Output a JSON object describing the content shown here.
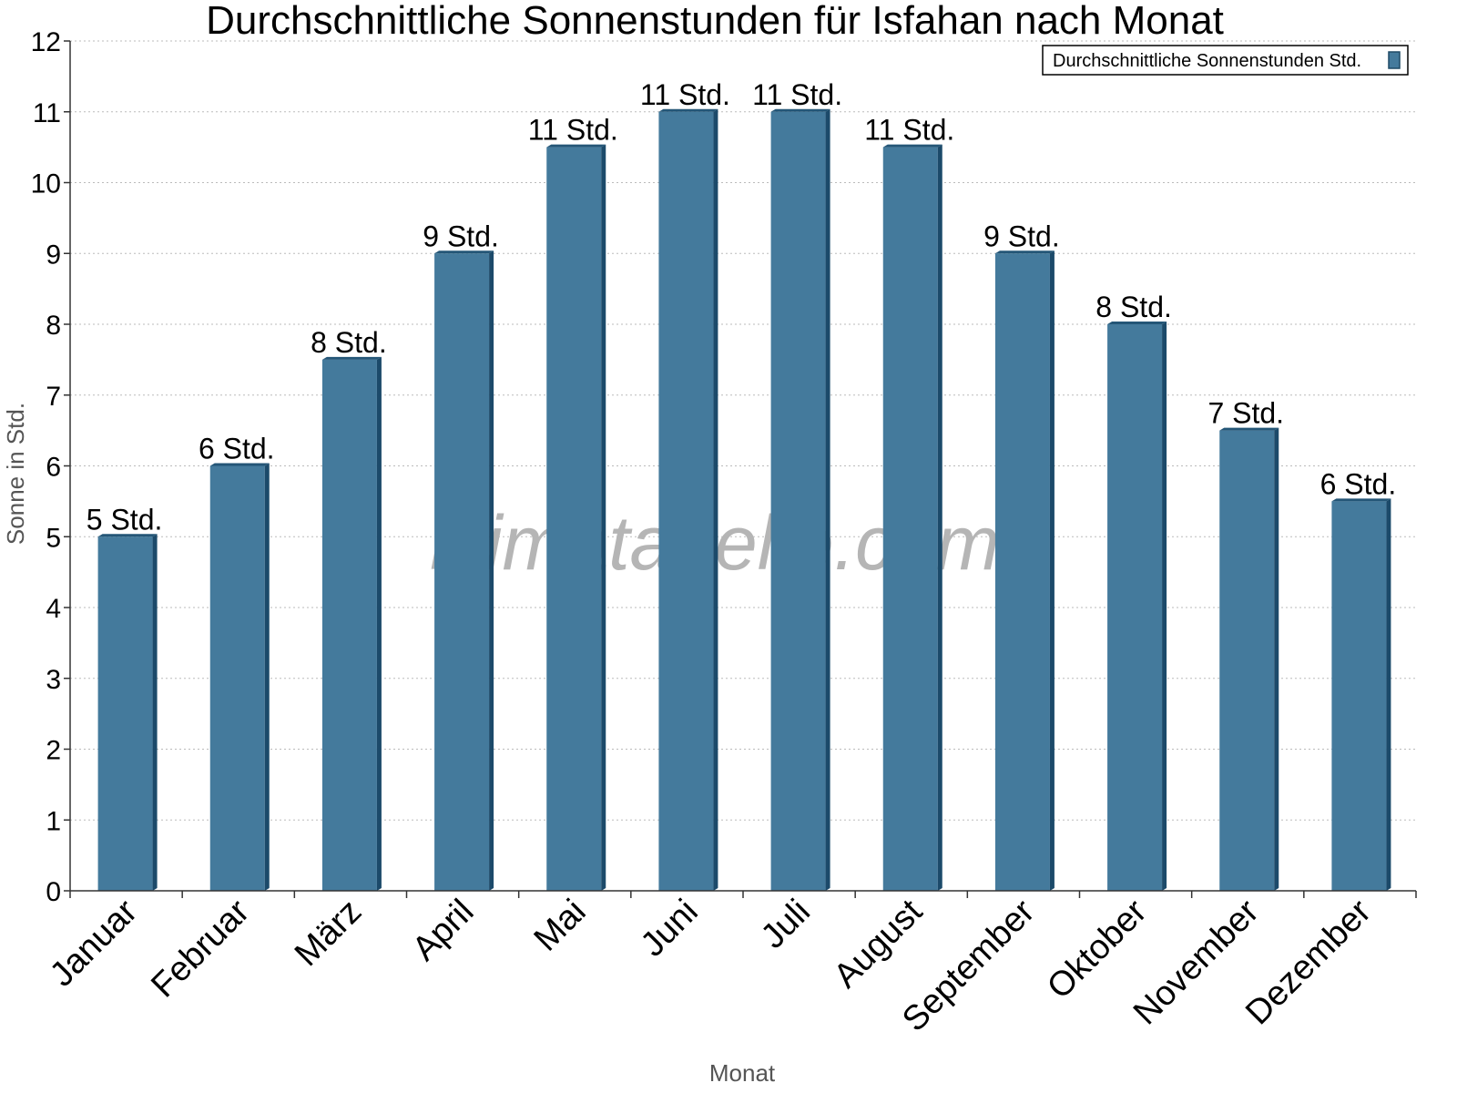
{
  "chart_data": {
    "type": "bar",
    "title": "Durchschnittliche Sonnenstunden für Isfahan nach Monat",
    "xlabel": "Monat",
    "ylabel": "Sonne in Std.",
    "ylim": [
      0,
      12
    ],
    "yticks": [
      0,
      1,
      2,
      3,
      4,
      5,
      6,
      7,
      8,
      9,
      10,
      11,
      12
    ],
    "grid": true,
    "legend_position": "top-right",
    "categories": [
      "Januar",
      "Februar",
      "März",
      "April",
      "Mai",
      "Juni",
      "Juli",
      "August",
      "September",
      "Oktober",
      "November",
      "Dezember"
    ],
    "series": [
      {
        "name": "Durchschnittliche Sonnenstunden Std.",
        "color": "#447a9c",
        "values": [
          5,
          6,
          7.5,
          9,
          10.5,
          11,
          11,
          10.5,
          9,
          8,
          6.5,
          5.5
        ],
        "labels": [
          "5 Std.",
          "6 Std.",
          "8 Std.",
          "9 Std.",
          "11 Std.",
          "11 Std.",
          "11 Std.",
          "11 Std.",
          "9 Std.",
          "8 Std.",
          "7 Std.",
          "6 Std."
        ]
      }
    ],
    "watermark": "klimatabelle.com"
  }
}
